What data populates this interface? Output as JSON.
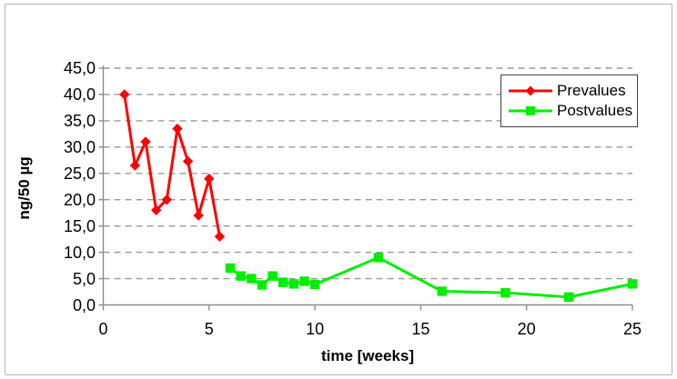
{
  "chart_data": {
    "type": "line",
    "title": "",
    "xlabel": "time [weeks]",
    "ylabel": "ng/50 µg",
    "xlim": [
      0,
      25
    ],
    "ylim": [
      0,
      45
    ],
    "x_ticks": [
      0,
      5,
      10,
      15,
      20,
      25
    ],
    "x_tick_labels": [
      "0",
      "5",
      "10",
      "15",
      "20",
      "25"
    ],
    "y_ticks": [
      0,
      5,
      10,
      15,
      20,
      25,
      30,
      35,
      40,
      45
    ],
    "y_tick_labels": [
      "0,0",
      "5,0",
      "10,0",
      "15,0",
      "20,0",
      "25,0",
      "30,0",
      "35,0",
      "40,0",
      "45,0"
    ],
    "grid": "horizontal dashed",
    "legend_position": "top-right",
    "gridline_color": "#999999",
    "axis_color": "#8c8c8c",
    "series": [
      {
        "name": "Prevalues",
        "color": "#ff0000",
        "marker": "diamond",
        "x": [
          1,
          1.5,
          2,
          2.5,
          3,
          3.5,
          4,
          4.5,
          5,
          5.5
        ],
        "y": [
          40.0,
          26.5,
          31.0,
          18.0,
          20.0,
          33.5,
          27.3,
          17.0,
          24.0,
          13.0
        ]
      },
      {
        "name": "Postvalues",
        "color": "#00ee00",
        "marker": "square",
        "x": [
          6,
          6.5,
          7,
          7.5,
          8,
          8.5,
          9,
          9.5,
          10,
          13,
          16,
          19,
          22,
          25
        ],
        "y": [
          7.0,
          5.5,
          5.0,
          3.8,
          5.5,
          4.3,
          4.0,
          4.5,
          3.9,
          9.0,
          2.6,
          2.3,
          1.5,
          4.0
        ]
      }
    ]
  }
}
